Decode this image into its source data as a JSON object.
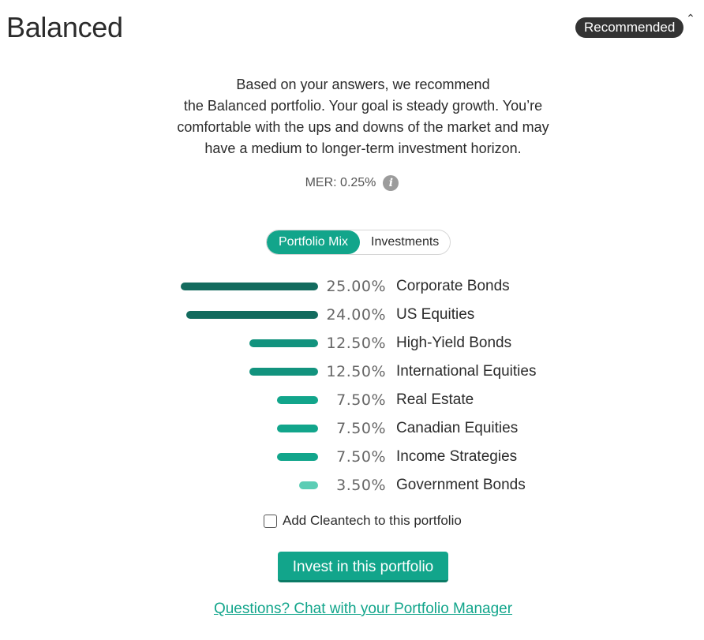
{
  "header": {
    "title": "Balanced",
    "badge": "Recommended",
    "collapse_icon": "chevron-up-icon"
  },
  "description": {
    "lines": [
      "Based on your answers, we recommend",
      "the Balanced portfolio. Your goal is steady growth. You’re",
      "comfortable with the ups and downs of the market and may",
      "have a medium to longer-term investment horizon."
    ]
  },
  "mer": {
    "text": "MER: 0.25%",
    "icon": "info-icon"
  },
  "tabs": [
    {
      "label": "Portfolio Mix",
      "active": true
    },
    {
      "label": "Investments",
      "active": false
    }
  ],
  "portfolio_mix": [
    {
      "percent": "25.00%",
      "value": 25.0,
      "label": "Corporate Bonds",
      "color": "#136b5e"
    },
    {
      "percent": "24.00%",
      "value": 24.0,
      "label": "US Equities",
      "color": "#136b5e"
    },
    {
      "percent": "12.50%",
      "value": 12.5,
      "label": "High-Yield Bonds",
      "color": "#12937e"
    },
    {
      "percent": "12.50%",
      "value": 12.5,
      "label": "International Equities",
      "color": "#12937e"
    },
    {
      "percent": "7.50%",
      "value": 7.5,
      "label": "Real Estate",
      "color": "#12a58b"
    },
    {
      "percent": "7.50%",
      "value": 7.5,
      "label": "Canadian Equities",
      "color": "#12a58b"
    },
    {
      "percent": "7.50%",
      "value": 7.5,
      "label": "Income Strategies",
      "color": "#12a58b"
    },
    {
      "percent": "3.50%",
      "value": 3.5,
      "label": "Government Bonds",
      "color": "#5ccdb5"
    }
  ],
  "cleantech": {
    "label": "Add Cleantech to this portfolio",
    "checked": false
  },
  "invest_button": "Invest in this portfolio",
  "chat_link": "Questions? Chat with your Portfolio Manager"
}
